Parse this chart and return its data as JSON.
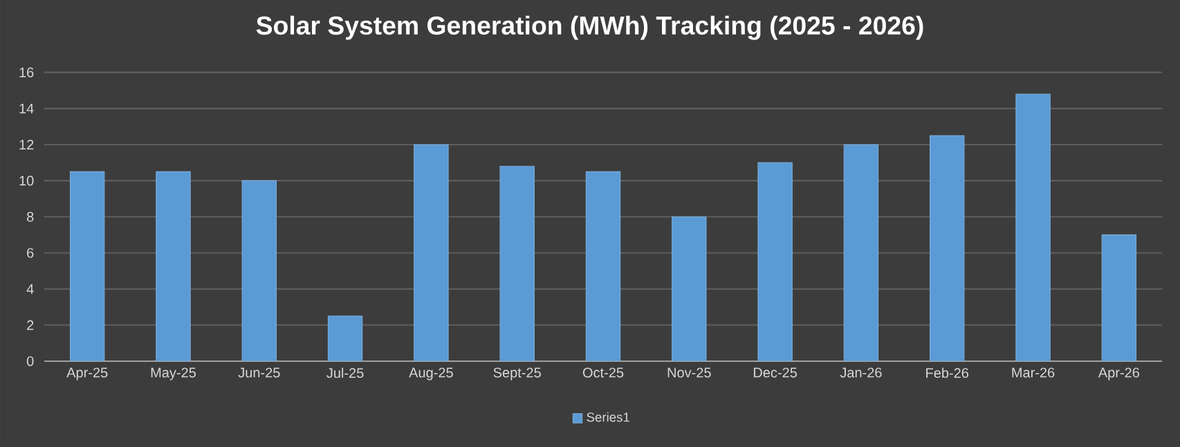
{
  "chart_data": {
    "type": "bar",
    "title": "Solar System Generation (MWh) Tracking (2025 - 2026)",
    "categories": [
      "Apr-25",
      "May-25",
      "Jun-25",
      "Jul-25",
      "Aug-25",
      "Sept-25",
      "Oct-25",
      "Nov-25",
      "Dec-25",
      "Jan-26",
      "Feb-26",
      "Mar-26",
      "Apr-26"
    ],
    "series": [
      {
        "name": "Series1",
        "color": "#5b9bd5",
        "values": [
          10.5,
          10.5,
          10,
          2.5,
          12,
          10.8,
          10.5,
          8,
          11,
          12,
          12.5,
          14.8,
          7
        ]
      }
    ],
    "ylim": [
      0,
      16
    ],
    "yticks": [
      0,
      2,
      4,
      6,
      8,
      10,
      12,
      14,
      16
    ],
    "grid": "y",
    "legend": "bottom"
  }
}
